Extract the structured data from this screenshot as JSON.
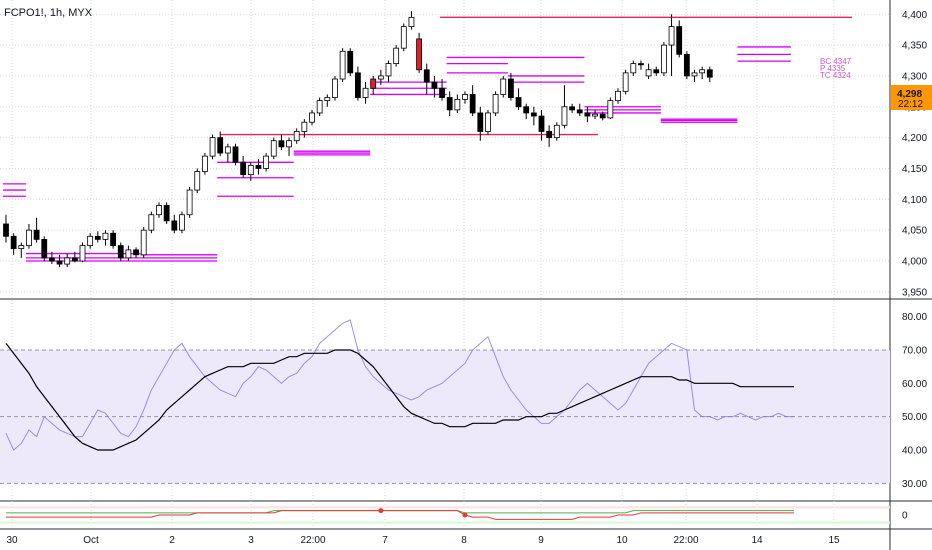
{
  "header": {
    "symbol": "FCPO1!, 1h, MYX"
  },
  "last_price": {
    "value": "4,298",
    "countdown": "22:12"
  },
  "pivot_labels": [
    "BC 4347",
    "P 4335",
    "TC 4324"
  ],
  "colors": {
    "bull": "#ffffff",
    "bear": "#000000",
    "wick": "#000000",
    "highlight": "#e01e2a",
    "level": "#e91e63",
    "pivot": "#d500f9",
    "rsi": "#7e6fd6",
    "rsi_ma": "#000000",
    "rsi_band": "#ede9fb",
    "tag_bg": "#ff9800"
  },
  "chart_data": [
    {
      "type": "candlestick",
      "title": "FCPO1!, 1h, MYX",
      "ylim": [
        3940,
        4415
      ],
      "y_ticks": [
        3950,
        4000,
        4050,
        4100,
        4150,
        4200,
        4250,
        4300,
        4350,
        4400
      ],
      "y_tick_labels": [
        "3,950",
        "4,000",
        "4,050",
        "4,100",
        "4,150",
        "4,200",
        "4,250",
        "4,300",
        "4,350",
        "4,400"
      ],
      "x_labels": [
        "30",
        "Oct",
        "2",
        "3",
        "22:00",
        "7",
        "8",
        "9",
        "10",
        "22:00",
        "14",
        "15"
      ],
      "horizontal_levels": [
        4395,
        4205
      ],
      "candles": [
        [
          4060,
          4075,
          4030,
          4040
        ],
        [
          4040,
          4045,
          4010,
          4020
        ],
        [
          4020,
          4030,
          4005,
          4025
        ],
        [
          4025,
          4060,
          4020,
          4050
        ],
        [
          4050,
          4070,
          4030,
          4035
        ],
        [
          4035,
          4040,
          4000,
          4005
        ],
        [
          4005,
          4015,
          3995,
          4000
        ],
        [
          4000,
          4010,
          3990,
          3995
        ],
        [
          3995,
          4012,
          3990,
          4005
        ],
        [
          4005,
          4015,
          3998,
          4000
        ],
        [
          4000,
          4030,
          3998,
          4025
        ],
        [
          4025,
          4045,
          4020,
          4040
        ],
        [
          4040,
          4048,
          4030,
          4035
        ],
        [
          4035,
          4050,
          4025,
          4045
        ],
        [
          4045,
          4050,
          4020,
          4025
        ],
        [
          4025,
          4030,
          4000,
          4005
        ],
        [
          4005,
          4025,
          4000,
          4018
        ],
        [
          4018,
          4022,
          4005,
          4010
        ],
        [
          4010,
          4055,
          4005,
          4050
        ],
        [
          4050,
          4080,
          4045,
          4075
        ],
        [
          4075,
          4095,
          4070,
          4090
        ],
        [
          4090,
          4095,
          4060,
          4065
        ],
        [
          4065,
          4075,
          4045,
          4050
        ],
        [
          4050,
          4080,
          4045,
          4075
        ],
        [
          4075,
          4120,
          4070,
          4115
        ],
        [
          4115,
          4150,
          4110,
          4145
        ],
        [
          4145,
          4175,
          4140,
          4170
        ],
        [
          4170,
          4205,
          4165,
          4200
        ],
        [
          4200,
          4210,
          4170,
          4175
        ],
        [
          4175,
          4190,
          4160,
          4185
        ],
        [
          4185,
          4190,
          4155,
          4160
        ],
        [
          4160,
          4170,
          4135,
          4140
        ],
        [
          4140,
          4160,
          4130,
          4155
        ],
        [
          4155,
          4165,
          4140,
          4150
        ],
        [
          4150,
          4175,
          4145,
          4170
        ],
        [
          4170,
          4200,
          4165,
          4195
        ],
        [
          4195,
          4205,
          4180,
          4185
        ],
        [
          4185,
          4200,
          4170,
          4195
        ],
        [
          4195,
          4215,
          4190,
          4210
        ],
        [
          4210,
          4230,
          4200,
          4225
        ],
        [
          4225,
          4245,
          4220,
          4240
        ],
        [
          4240,
          4265,
          4235,
          4260
        ],
        [
          4260,
          4270,
          4250,
          4265
        ],
        [
          4265,
          4300,
          4260,
          4295
        ],
        [
          4295,
          4345,
          4290,
          4340
        ],
        [
          4340,
          4345,
          4300,
          4305
        ],
        [
          4305,
          4315,
          4260,
          4265
        ],
        [
          4265,
          4290,
          4255,
          4280
        ],
        [
          4280,
          4300,
          4270,
          4295
        ],
        [
          4295,
          4310,
          4285,
          4300
        ],
        [
          4300,
          4325,
          4290,
          4320
        ],
        [
          4320,
          4350,
          4315,
          4345
        ],
        [
          4345,
          4385,
          4340,
          4380
        ],
        [
          4380,
          4405,
          4375,
          4395
        ],
        [
          4360,
          4370,
          4305,
          4310
        ],
        [
          4310,
          4320,
          4270,
          4290
        ],
        [
          4290,
          4300,
          4265,
          4280
        ],
        [
          4280,
          4295,
          4260,
          4265
        ],
        [
          4265,
          4275,
          4235,
          4245
        ],
        [
          4245,
          4270,
          4240,
          4262
        ],
        [
          4262,
          4275,
          4255,
          4270
        ],
        [
          4270,
          4285,
          4235,
          4240
        ],
        [
          4240,
          4250,
          4195,
          4210
        ],
        [
          4210,
          4245,
          4205,
          4240
        ],
        [
          4240,
          4275,
          4235,
          4270
        ],
        [
          4270,
          4300,
          4265,
          4295
        ],
        [
          4295,
          4305,
          4260,
          4265
        ],
        [
          4265,
          4280,
          4245,
          4250
        ],
        [
          4250,
          4255,
          4230,
          4240
        ],
        [
          4240,
          4250,
          4220,
          4235
        ],
        [
          4235,
          4245,
          4195,
          4210
        ],
        [
          4210,
          4220,
          4185,
          4200
        ],
        [
          4200,
          4225,
          4195,
          4220
        ],
        [
          4220,
          4285,
          4215,
          4250
        ],
        [
          4250,
          4255,
          4240,
          4245
        ],
        [
          4245,
          4255,
          4235,
          4240
        ],
        [
          4240,
          4250,
          4225,
          4235
        ],
        [
          4235,
          4245,
          4230,
          4238
        ],
        [
          4238,
          4242,
          4228,
          4232
        ],
        [
          4232,
          4265,
          4230,
          4260
        ],
        [
          4260,
          4280,
          4255,
          4275
        ],
        [
          4275,
          4310,
          4270,
          4305
        ],
        [
          4305,
          4325,
          4300,
          4320
        ],
        [
          4320,
          4325,
          4310,
          4318
        ],
        [
          4300,
          4320,
          4295,
          4310
        ],
        [
          4310,
          4315,
          4300,
          4305
        ],
        [
          4305,
          4355,
          4300,
          4350
        ],
        [
          4350,
          4400,
          4300,
          4380
        ],
        [
          4380,
          4390,
          4330,
          4335
        ],
        [
          4335,
          4340,
          4295,
          4300
        ],
        [
          4300,
          4310,
          4290,
          4305
        ],
        [
          4305,
          4315,
          4295,
          4310
        ],
        [
          4310,
          4315,
          4290,
          4298
        ]
      ],
      "pivot_segments": [
        {
          "from": 0,
          "to": 3,
          "levels": [
            4125,
            4115,
            4105
          ]
        },
        {
          "from": 3,
          "to": 18,
          "levels": [
            4012,
            4005,
            4000
          ]
        },
        {
          "from": 18,
          "to": 28,
          "levels": [
            4010,
            4005,
            4000
          ]
        },
        {
          "from": 28,
          "to": 38,
          "levels": [
            4160,
            4135,
            4105
          ]
        },
        {
          "from": 38,
          "to": 48,
          "levels": [
            4178,
            4175,
            4172
          ]
        },
        {
          "from": 48,
          "to": 58,
          "levels": [
            4290,
            4280,
            4270
          ]
        },
        {
          "from": 58,
          "to": 66,
          "levels": [
            4330,
            4320,
            4305
          ]
        },
        {
          "from": 66,
          "to": 76,
          "levels": [
            4330,
            4300,
            4290
          ]
        },
        {
          "from": 76,
          "to": 86,
          "levels": [
            4250,
            4245,
            4240
          ]
        },
        {
          "from": 86,
          "to": 96,
          "levels": [
            4230,
            4228,
            4225
          ]
        },
        {
          "from": 96,
          "to": 103,
          "levels": [
            4347,
            4335,
            4324
          ]
        }
      ]
    },
    {
      "type": "line",
      "title": "",
      "ylim": [
        25,
        85
      ],
      "y_ticks": [
        30,
        40,
        50,
        60,
        70,
        80
      ],
      "y_tick_labels": [
        "30.00",
        "40.00",
        "50.00",
        "60.00",
        "70.00",
        "80.00"
      ],
      "band": [
        30,
        70
      ],
      "mid_line": 50,
      "series": [
        {
          "values": [
            45,
            40,
            42,
            46,
            44,
            50,
            48,
            46,
            45,
            44,
            44,
            48,
            52,
            51,
            48,
            45,
            44,
            47,
            52,
            58,
            62,
            66,
            70,
            72,
            68,
            65,
            62,
            60,
            58,
            57,
            56,
            60,
            62,
            65,
            64,
            62,
            60,
            62,
            63,
            66,
            68,
            72,
            74,
            76,
            78,
            79,
            70,
            65,
            62,
            60,
            58,
            57,
            56,
            55,
            56,
            58,
            59,
            60,
            62,
            64,
            66,
            70,
            72,
            74,
            68,
            62,
            58,
            55,
            52,
            50,
            48,
            48,
            50,
            52,
            55,
            58,
            60,
            58,
            56,
            54,
            52,
            54,
            58,
            62,
            66,
            68,
            70,
            72,
            71,
            70,
            52,
            50,
            50,
            49,
            50,
            50,
            51,
            50,
            49,
            50,
            50,
            51,
            50,
            50
          ]
        },
        {
          "values": [
            72,
            69,
            66,
            63,
            59,
            56,
            53,
            50,
            47,
            44,
            42,
            41,
            40,
            40,
            40,
            41,
            42,
            43,
            45,
            47,
            49,
            52,
            54,
            56,
            58,
            60,
            62,
            63,
            64,
            65,
            65,
            65,
            66,
            66,
            66,
            66,
            67,
            68,
            68,
            69,
            69,
            69,
            69,
            70,
            70,
            70,
            69,
            67,
            65,
            62,
            59,
            56,
            53,
            51,
            50,
            49,
            48,
            48,
            47,
            47,
            47,
            48,
            48,
            48,
            48,
            49,
            49,
            49,
            50,
            50,
            50,
            51,
            51,
            52,
            53,
            54,
            55,
            56,
            57,
            58,
            59,
            60,
            61,
            62,
            62,
            62,
            62,
            62,
            61,
            61,
            60,
            60,
            60,
            60,
            60,
            60,
            59,
            59,
            59,
            59,
            59,
            59,
            59,
            59
          ]
        }
      ]
    },
    {
      "type": "line",
      "title": "",
      "ylim": [
        -6,
        6
      ],
      "y_ticks": [
        0
      ],
      "y_tick_labels": [
        "0"
      ],
      "series": [
        {
          "values": [
            1,
            1,
            1,
            1,
            1,
            1,
            1,
            1,
            1,
            1,
            1,
            1,
            1,
            1,
            1,
            1,
            1,
            1,
            1,
            1,
            1,
            1,
            1,
            1,
            1,
            1,
            1,
            1,
            1,
            1,
            1,
            1,
            1,
            1,
            1,
            2,
            2,
            2,
            2,
            2,
            2,
            2,
            2,
            2,
            2,
            2,
            2,
            2,
            2,
            2,
            2,
            2,
            2,
            2,
            2,
            2,
            2,
            2,
            2,
            2,
            1,
            1,
            1,
            1,
            1,
            1,
            1,
            1,
            1,
            1,
            1,
            1,
            1,
            1,
            1,
            1,
            1,
            1,
            1,
            1,
            1,
            1,
            2,
            2,
            2,
            2,
            2,
            2,
            2,
            2,
            2,
            2,
            2,
            2,
            2,
            2,
            2,
            2,
            2,
            2,
            2,
            2,
            2,
            2
          ]
        },
        {
          "values": [
            -1,
            -1,
            -1,
            -1,
            -1,
            -1,
            -1,
            -1,
            -1,
            -1,
            -1,
            -1,
            -1,
            -1,
            -1,
            -1,
            -1,
            -1,
            -1,
            -1,
            0,
            0,
            0,
            0,
            0,
            1,
            1,
            1,
            1,
            1,
            1,
            1,
            1,
            1,
            1,
            1,
            2,
            2,
            2,
            2,
            2,
            2,
            2,
            2,
            2,
            2,
            2,
            2,
            2,
            2,
            2,
            2,
            2,
            2,
            2,
            2,
            2,
            2,
            2,
            2,
            0,
            -1,
            -1,
            -1,
            -2,
            -2,
            -2,
            -2,
            -2,
            -2,
            -2,
            -2,
            -2,
            -2,
            -2,
            -1,
            -1,
            -1,
            -1,
            -1,
            0,
            0,
            0,
            1,
            1,
            1,
            1,
            1,
            1,
            1,
            1,
            1,
            1,
            1,
            1,
            1,
            1,
            1,
            1,
            1,
            1,
            1,
            1,
            1
          ]
        }
      ],
      "markers": [
        49,
        60
      ]
    }
  ]
}
